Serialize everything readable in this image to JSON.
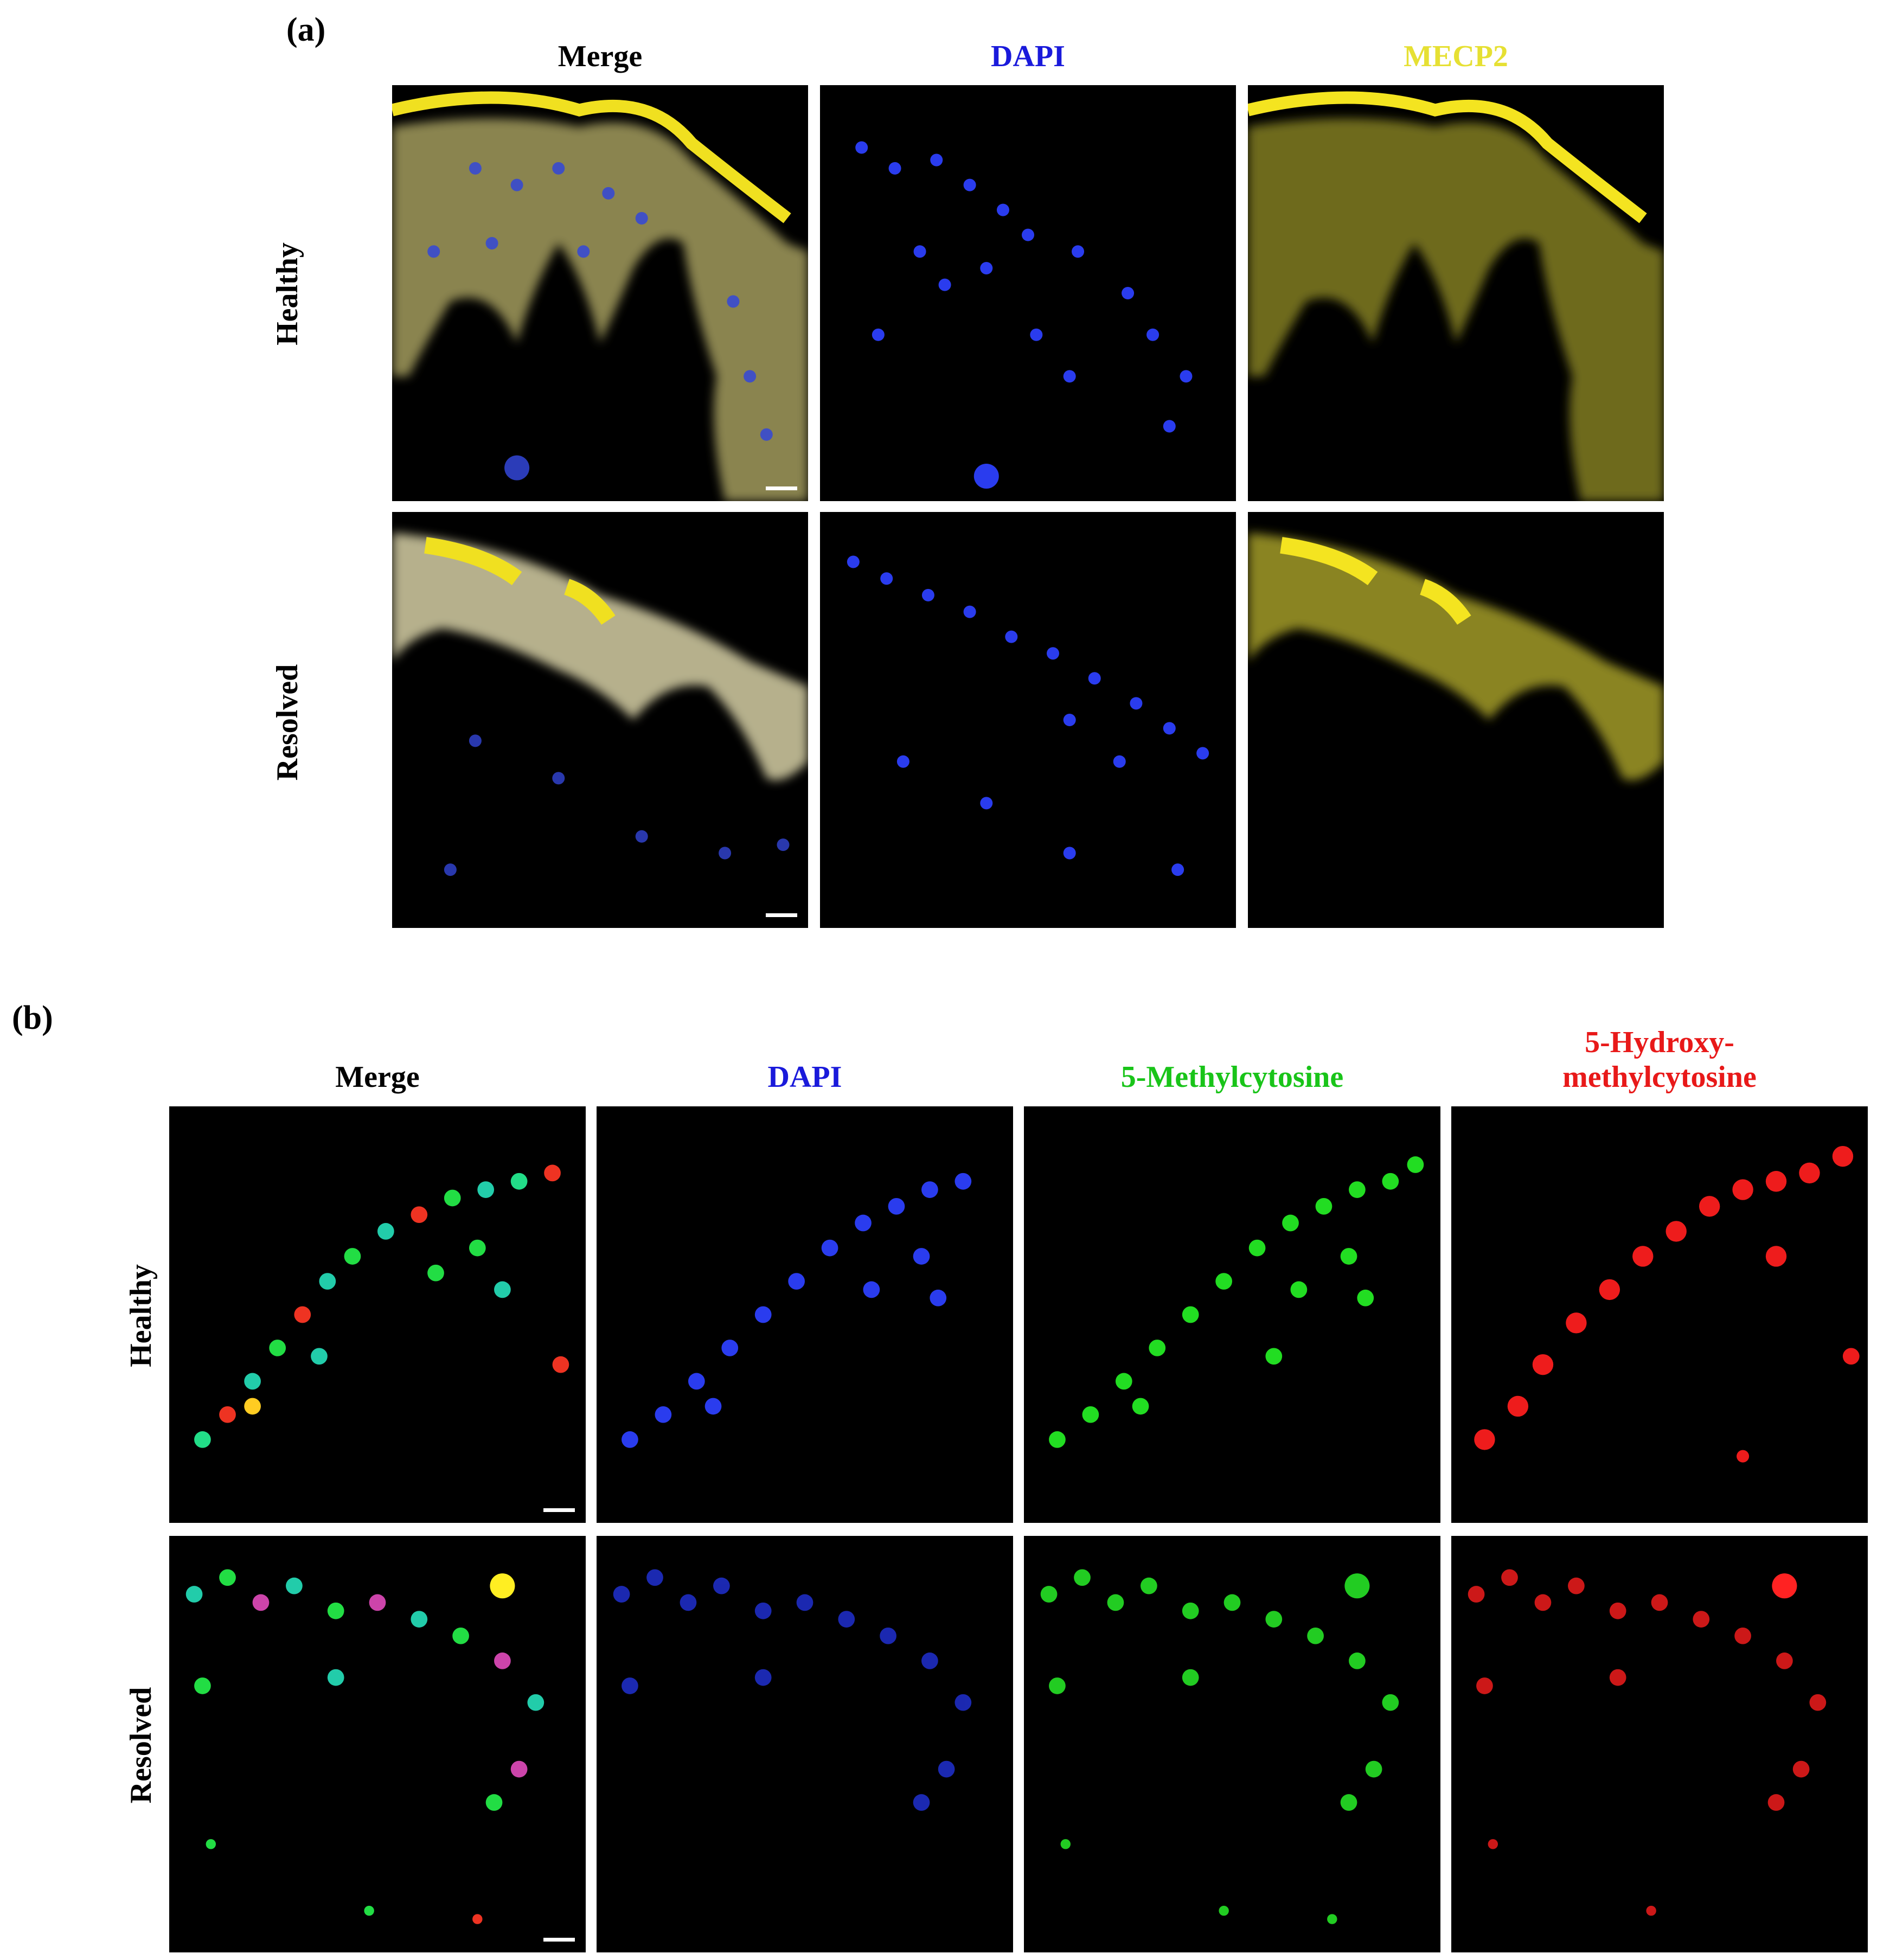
{
  "panel_a": {
    "letter": "(a)",
    "columns": [
      {
        "label": "Merge",
        "color": "#000000"
      },
      {
        "label": "DAPI",
        "color": "#1a1adb"
      },
      {
        "label": "MECP2",
        "color": "#e6e033"
      }
    ],
    "rows": [
      "Healthy",
      "Resolved"
    ]
  },
  "panel_b": {
    "letter": "(b)",
    "columns": [
      {
        "label": "Merge",
        "color": "#000000"
      },
      {
        "label": "DAPI",
        "color": "#1a1adb"
      },
      {
        "label": "5-Methylcytosine",
        "color": "#19c419"
      },
      {
        "label_line1": "5-Hydroxy-",
        "label_line2": "methylcytosine",
        "color": "#e81919"
      }
    ],
    "rows": [
      "Healthy",
      "Resolved"
    ]
  },
  "stain_colors": {
    "dapi": "#2233ee",
    "mecp2": "#c8c020",
    "methylcytosine": "#22dd22",
    "hydroxymethylcytosine": "#ee1c1c"
  }
}
